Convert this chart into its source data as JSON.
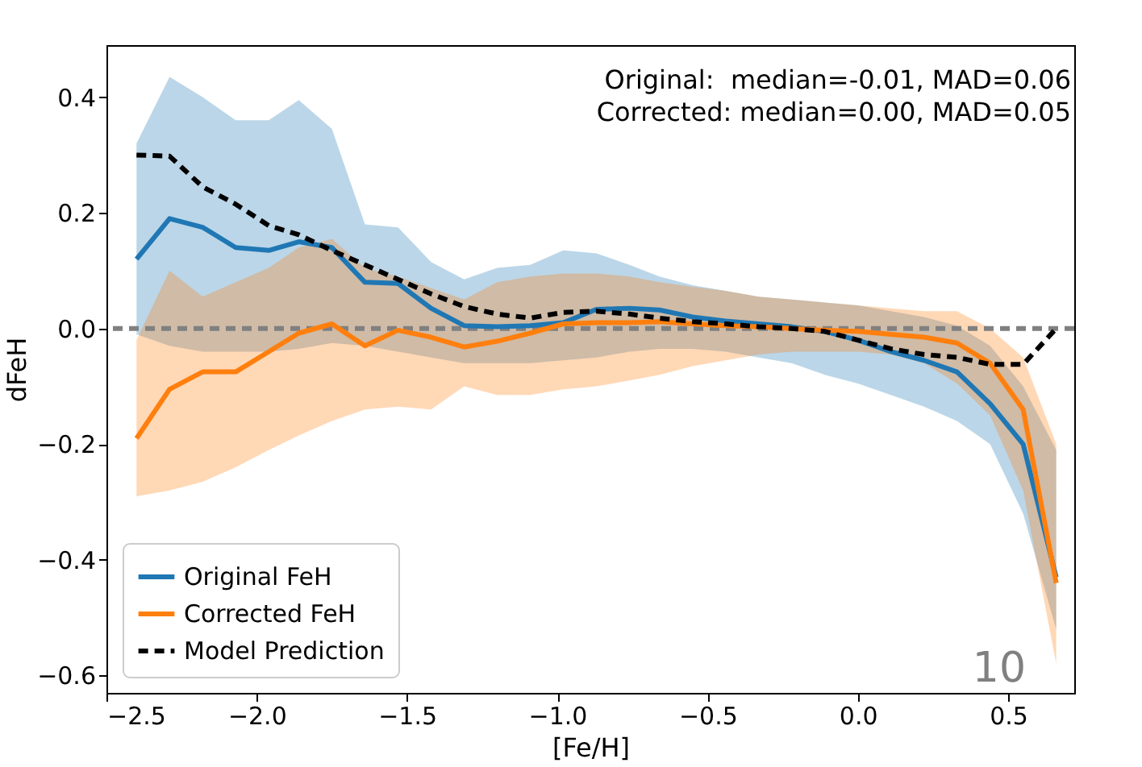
{
  "chart_data": {
    "type": "line",
    "xlabel": "[Fe/H]",
    "ylabel": "dFeH",
    "x": [
      -2.4,
      -2.29,
      -2.18,
      -2.07,
      -1.96,
      -1.86,
      -1.75,
      -1.64,
      -1.53,
      -1.42,
      -1.31,
      -1.2,
      -1.09,
      -0.98,
      -0.87,
      -0.76,
      -0.66,
      -0.55,
      -0.44,
      -0.33,
      -0.22,
      -0.11,
      0.0,
      0.11,
      0.22,
      0.33,
      0.44,
      0.55,
      0.66
    ],
    "series": [
      {
        "name": "Original FeH",
        "color": "#1f77b4",
        "line_style": "solid",
        "values": [
          0.12,
          0.19,
          0.175,
          0.14,
          0.135,
          0.15,
          0.14,
          0.08,
          0.078,
          0.035,
          0.005,
          0.003,
          0.005,
          0.01,
          0.033,
          0.035,
          0.032,
          0.02,
          0.013,
          0.008,
          0.003,
          -0.005,
          -0.02,
          -0.04,
          -0.055,
          -0.075,
          -0.13,
          -0.2,
          -0.43
        ],
        "upper": [
          0.32,
          0.435,
          0.4,
          0.36,
          0.36,
          0.395,
          0.345,
          0.18,
          0.175,
          0.115,
          0.085,
          0.105,
          0.11,
          0.135,
          0.13,
          0.11,
          0.09,
          0.075,
          0.065,
          0.055,
          0.05,
          0.045,
          0.04,
          0.03,
          0.02,
          0.005,
          -0.03,
          -0.1,
          -0.21
        ],
        "lower": [
          -0.01,
          -0.03,
          -0.04,
          -0.04,
          -0.04,
          -0.035,
          -0.025,
          -0.03,
          -0.04,
          -0.05,
          -0.06,
          -0.06,
          -0.06,
          -0.055,
          -0.05,
          -0.04,
          -0.035,
          -0.035,
          -0.04,
          -0.05,
          -0.06,
          -0.08,
          -0.095,
          -0.115,
          -0.135,
          -0.16,
          -0.2,
          -0.32,
          -0.52
        ]
      },
      {
        "name": "Corrected FeH",
        "color": "#ff7f0e",
        "line_style": "solid",
        "values": [
          -0.19,
          -0.105,
          -0.075,
          -0.075,
          -0.04,
          -0.008,
          0.008,
          -0.03,
          -0.003,
          -0.015,
          -0.032,
          -0.022,
          -0.008,
          0.008,
          0.01,
          0.01,
          0.012,
          0.008,
          0.005,
          0.003,
          0.0,
          -0.003,
          -0.005,
          -0.01,
          -0.015,
          -0.025,
          -0.06,
          -0.14,
          -0.44
        ],
        "upper": [
          -0.02,
          0.1,
          0.055,
          0.08,
          0.105,
          0.14,
          0.155,
          0.105,
          0.09,
          0.07,
          0.05,
          0.08,
          0.09,
          0.095,
          0.095,
          0.09,
          0.08,
          0.072,
          0.065,
          0.055,
          0.05,
          0.045,
          0.04,
          0.035,
          0.03,
          0.03,
          0.0,
          -0.05,
          -0.2
        ],
        "lower": [
          -0.29,
          -0.28,
          -0.265,
          -0.24,
          -0.21,
          -0.185,
          -0.16,
          -0.14,
          -0.135,
          -0.14,
          -0.1,
          -0.115,
          -0.115,
          -0.105,
          -0.1,
          -0.09,
          -0.08,
          -0.065,
          -0.055,
          -0.045,
          -0.04,
          -0.04,
          -0.04,
          -0.045,
          -0.06,
          -0.095,
          -0.15,
          -0.28,
          -0.58
        ]
      },
      {
        "name": "Model Prediction",
        "color": "#000000",
        "line_style": "dashed",
        "values": [
          0.3,
          0.298,
          0.245,
          0.215,
          0.178,
          0.162,
          0.135,
          0.11,
          0.085,
          0.06,
          0.038,
          0.025,
          0.018,
          0.028,
          0.03,
          0.025,
          0.018,
          0.012,
          0.008,
          0.003,
          0.0,
          -0.005,
          -0.02,
          -0.035,
          -0.045,
          -0.05,
          -0.062,
          -0.062,
          0.0
        ]
      }
    ],
    "xlim": [
      -2.5,
      0.72
    ],
    "ylim": [
      -0.63,
      0.49
    ],
    "xticks": [
      {
        "value": -2.5,
        "label": "−2.5"
      },
      {
        "value": -2.0,
        "label": "−2.0"
      },
      {
        "value": -1.5,
        "label": "−1.5"
      },
      {
        "value": -1.0,
        "label": "−1.0"
      },
      {
        "value": -0.5,
        "label": "−0.5"
      },
      {
        "value": 0.0,
        "label": "0.0"
      },
      {
        "value": 0.5,
        "label": "0.5"
      }
    ],
    "yticks": [
      {
        "value": -0.6,
        "label": "−0.6"
      },
      {
        "value": -0.4,
        "label": "−0.4"
      },
      {
        "value": -0.2,
        "label": "−0.2"
      },
      {
        "value": 0.0,
        "label": "0.0"
      },
      {
        "value": 0.2,
        "label": "0.2"
      },
      {
        "value": 0.4,
        "label": "0.4"
      }
    ],
    "ref_lines": [
      {
        "axis": "y",
        "value": 0,
        "color": "#808080",
        "line_style": "dashed"
      }
    ],
    "annotations": [
      "Original:  median=-0.01, MAD=0.06",
      "Corrected: median=0.00, MAD=0.05",
      "10"
    ],
    "legend": "bottom left",
    "grid": false,
    "marker": "none"
  }
}
